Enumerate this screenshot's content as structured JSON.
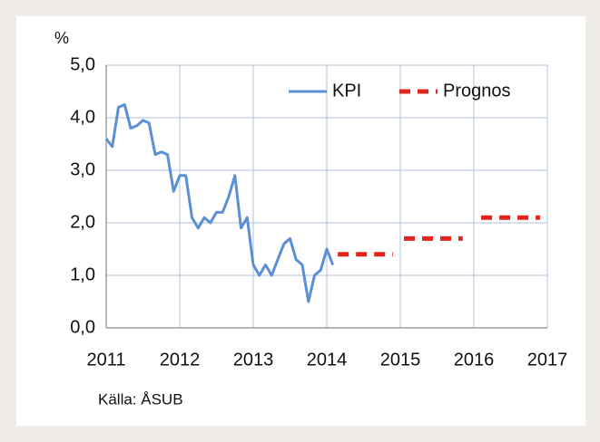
{
  "chart_data": {
    "type": "line",
    "y_label": "%",
    "source": "Källa: ÅSUB",
    "xlim": [
      2011,
      2017
    ],
    "xticks": [
      2011,
      2012,
      2013,
      2014,
      2015,
      2016,
      2017
    ],
    "ylim": [
      0,
      5
    ],
    "yticks": [
      {
        "value": 0,
        "label": "0,0"
      },
      {
        "value": 1,
        "label": "1,0"
      },
      {
        "value": 2,
        "label": "2,0"
      },
      {
        "value": 3,
        "label": "3,0"
      },
      {
        "value": 4,
        "label": "4,0"
      },
      {
        "value": 5,
        "label": "5,0"
      }
    ],
    "grid": true,
    "legend": "top-right",
    "series": [
      {
        "name": "KPI",
        "color": "#5b8fd6",
        "style": "solid",
        "x": [
          2011.0,
          2011.083,
          2011.167,
          2011.25,
          2011.333,
          2011.417,
          2011.5,
          2011.583,
          2011.667,
          2011.75,
          2011.833,
          2011.917,
          2012.0,
          2012.083,
          2012.167,
          2012.25,
          2012.333,
          2012.417,
          2012.5,
          2012.583,
          2012.667,
          2012.75,
          2012.833,
          2012.917,
          2013.0,
          2013.083,
          2013.167,
          2013.25,
          2013.333,
          2013.417,
          2013.5,
          2013.583,
          2013.667,
          2013.75,
          2013.833,
          2013.917,
          2014.0,
          2014.083
        ],
        "values": [
          3.6,
          3.45,
          4.2,
          4.25,
          3.8,
          3.85,
          3.95,
          3.9,
          3.3,
          3.35,
          3.3,
          2.6,
          2.9,
          2.9,
          2.1,
          1.9,
          2.1,
          2.0,
          2.2,
          2.2,
          2.5,
          2.9,
          1.9,
          2.1,
          1.2,
          1.0,
          1.2,
          1.0,
          1.3,
          1.6,
          1.7,
          1.3,
          1.2,
          0.5,
          1.0,
          1.1,
          1.5,
          1.2
        ]
      },
      {
        "name": "Prognos",
        "color": "#e3241c",
        "style": "dashed",
        "x": [
          2014.15,
          2014.9,
          null,
          2015.05,
          2015.85,
          null,
          2016.1,
          2016.9
        ],
        "values": [
          1.4,
          1.4,
          null,
          1.7,
          1.7,
          null,
          2.1,
          2.1
        ]
      }
    ]
  }
}
